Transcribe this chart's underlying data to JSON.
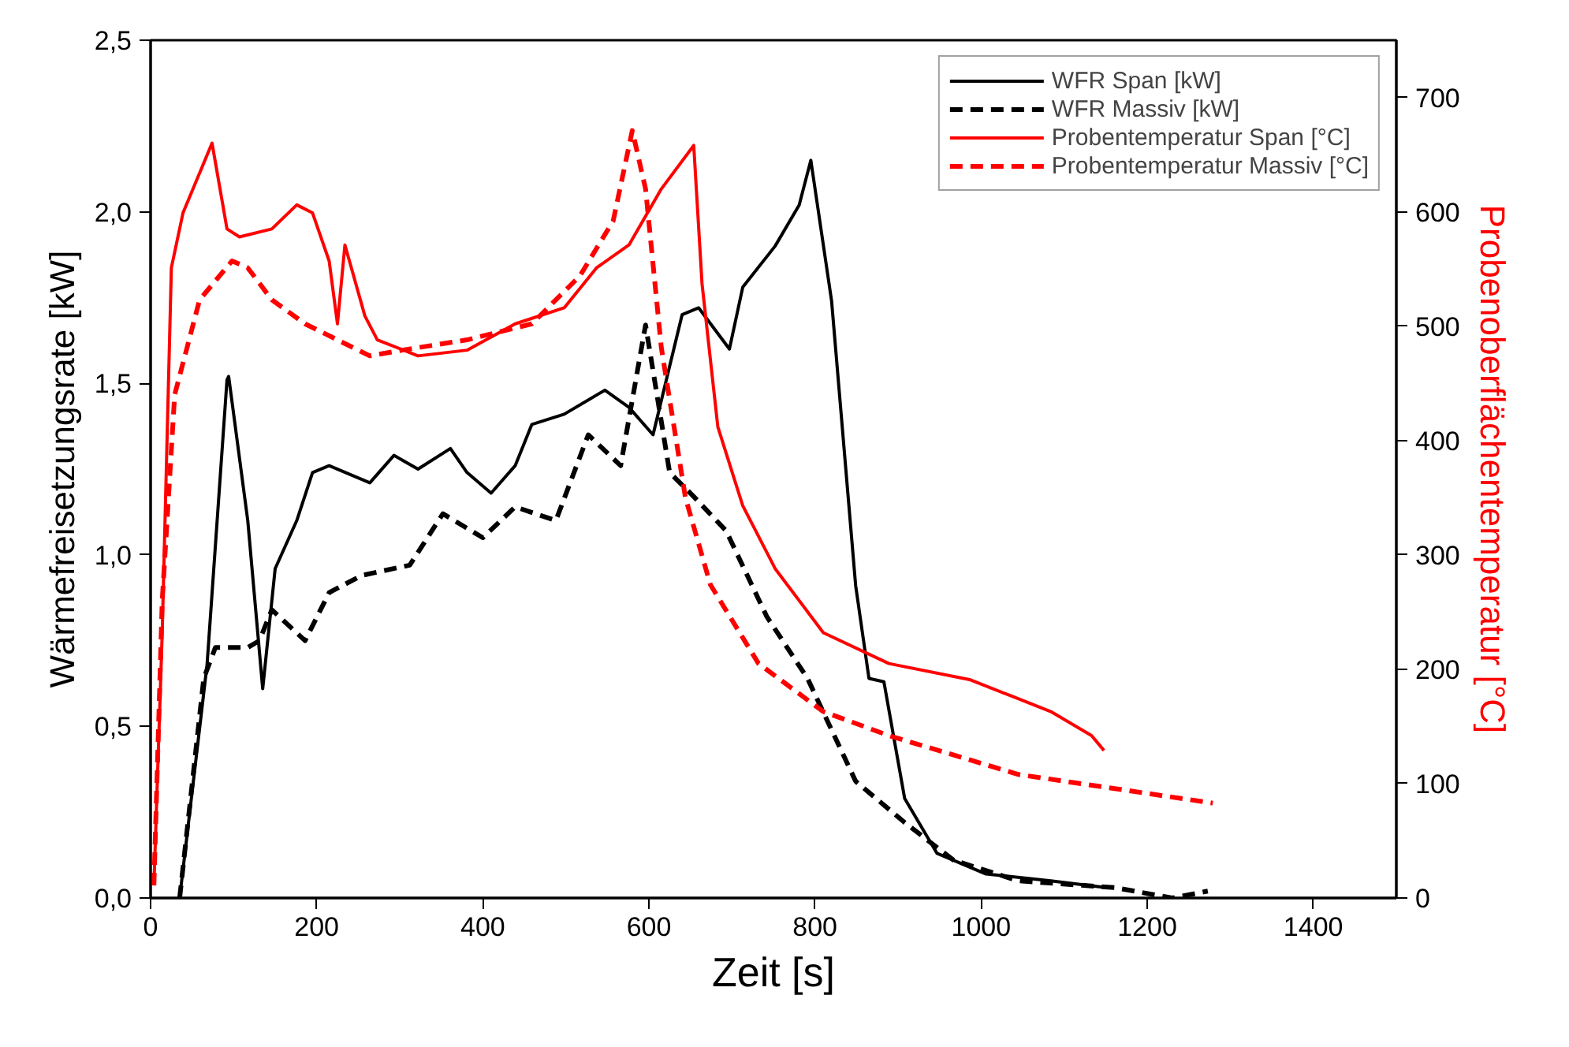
{
  "chart_data": {
    "type": "line",
    "xlabel": "Zeit [s]",
    "ylabel": "Wärmefreisetzungsrate [kW]",
    "y2label": "Probenoberflächentemperatur [°C]",
    "xlim": [
      0,
      1500
    ],
    "xticks": [
      0,
      200,
      400,
      600,
      800,
      1000,
      1200,
      1400
    ],
    "ylim": [
      0,
      2.5
    ],
    "yticks": [
      {
        "value": 0,
        "label": "0,0"
      },
      {
        "value": 0.5,
        "label": "0,5"
      },
      {
        "value": 1,
        "label": "1,0"
      },
      {
        "value": 1.5,
        "label": "1,5"
      },
      {
        "value": 2,
        "label": "2,0"
      },
      {
        "value": 2.5,
        "label": "2,5"
      }
    ],
    "y2lim": [
      0,
      750
    ],
    "y2ticks": [
      0,
      100,
      200,
      300,
      400,
      500,
      600,
      700
    ],
    "grid": false,
    "legend": "top right",
    "marker": "none",
    "series": [
      {
        "name": "WFR Span [kW]",
        "color": "#000000",
        "line_style": "solid",
        "x": [
          35,
          68,
          92,
          94,
          117,
          135,
          150,
          176,
          195,
          215,
          264,
          293,
          322,
          361,
          381,
          410,
          439,
          459,
          498,
          547,
          576,
          605,
          640,
          660,
          697,
          713,
          752,
          781,
          795,
          820,
          849,
          865,
          883,
          908,
          947,
          1006,
          1084,
          1152
        ],
        "values": [
          0,
          0.68,
          1.51,
          1.52,
          1.1,
          0.61,
          0.96,
          1.1,
          1.24,
          1.26,
          1.21,
          1.29,
          1.25,
          1.31,
          1.24,
          1.18,
          1.26,
          1.38,
          1.41,
          1.48,
          1.43,
          1.35,
          1.7,
          1.72,
          1.6,
          1.78,
          1.9,
          2.02,
          2.15,
          1.74,
          0.91,
          0.64,
          0.63,
          0.29,
          0.13,
          0.07,
          0.05,
          0.03
        ]
      },
      {
        "name": "WFR Massiv [kW]",
        "color": "#000000",
        "line_style": "dashed",
        "x": [
          35,
          64,
          78,
          117,
          131,
          146,
          186,
          215,
          254,
          312,
          352,
          400,
          439,
          488,
          527,
          566,
          596,
          625,
          654,
          693,
          742,
          791,
          849,
          908,
          967,
          1045,
          1162,
          1230,
          1273
        ],
        "values": [
          0,
          0.64,
          0.73,
          0.73,
          0.75,
          0.84,
          0.75,
          0.89,
          0.94,
          0.97,
          1.12,
          1.05,
          1.14,
          1.1,
          1.35,
          1.26,
          1.67,
          1.24,
          1.17,
          1.07,
          0.82,
          0.64,
          0.34,
          0.22,
          0.11,
          0.05,
          0.03,
          0,
          0.02
        ]
      },
      {
        "name": "Probentemperatur Span [°C]",
        "color": "#ff0000",
        "line_style": "solid",
        "axis": "y2",
        "x": [
          4,
          14,
          25,
          39,
          74,
          92,
          107,
          146,
          176,
          195,
          215,
          225,
          234,
          258,
          273,
          322,
          381,
          439,
          498,
          537,
          576,
          615,
          654,
          664,
          683,
          713,
          752,
          810,
          889,
          986,
          1035,
          1084,
          1133,
          1148
        ],
        "values": [
          11,
          232,
          551,
          599,
          660,
          585,
          578,
          585,
          606,
          599,
          557,
          502,
          571,
          509,
          488,
          474,
          479,
          502,
          516,
          551,
          571,
          620,
          658,
          537,
          412,
          343,
          288,
          232,
          205,
          191,
          177,
          163,
          142,
          129
        ]
      },
      {
        "name": "Probentemperatur Massiv [°C]",
        "color": "#ff0000",
        "line_style": "dashed",
        "axis": "y2",
        "x": [
          4,
          14,
          29,
          59,
          98,
          117,
          146,
          186,
          225,
          264,
          303,
          381,
          459,
          517,
          557,
          580,
          596,
          615,
          644,
          674,
          732,
          810,
          889,
          1045,
          1279
        ],
        "values": [
          11,
          260,
          440,
          523,
          557,
          551,
          523,
          502,
          488,
          474,
          479,
          488,
          502,
          544,
          592,
          671,
          620,
          481,
          350,
          274,
          205,
          163,
          142,
          108,
          83
        ]
      }
    ]
  }
}
